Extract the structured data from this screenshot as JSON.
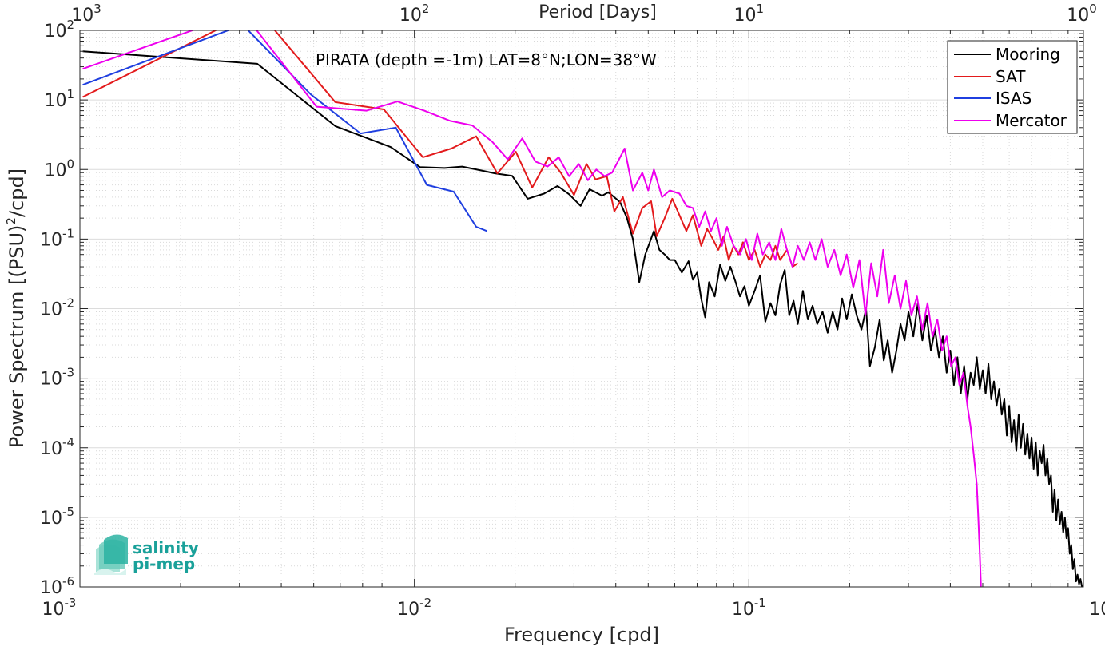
{
  "chart_data": {
    "type": "line",
    "title": "",
    "annotation": "PIRATA (depth =-1m) LAT=8°N;LON=38°W",
    "xlabel": "Frequency [cpd]",
    "ylabel_base": "Power Spectrum [(PSU)",
    "ylabel_sup": "2",
    "ylabel_tail": "/cpd]",
    "top_xlabel": "Period [Days]",
    "xscale": "log",
    "yscale": "log",
    "xlim": [
      0.001,
      1
    ],
    "ylim": [
      1e-06,
      100
    ],
    "grid": "on",
    "legend_position": "top-right",
    "x_ticks": [
      {
        "value": 0.001,
        "base": "10",
        "exp": "-3"
      },
      {
        "value": 0.01,
        "base": "10",
        "exp": "-2"
      },
      {
        "value": 0.1,
        "base": "10",
        "exp": "-1"
      },
      {
        "value": 1,
        "base": "10",
        "exp": "0"
      }
    ],
    "top_ticks": [
      {
        "value": 1000,
        "base": "10",
        "exp": "3"
      },
      {
        "value": 100,
        "base": "10",
        "exp": "2"
      },
      {
        "value": 10,
        "base": "10",
        "exp": "1"
      },
      {
        "value": 1,
        "base": "10",
        "exp": "0"
      }
    ],
    "y_ticks": [
      {
        "value": 100,
        "base": "10",
        "exp": "2"
      },
      {
        "value": 10,
        "base": "10",
        "exp": "1"
      },
      {
        "value": 1,
        "base": "10",
        "exp": "0"
      },
      {
        "value": 0.1,
        "base": "10",
        "exp": "-1"
      },
      {
        "value": 0.01,
        "base": "10",
        "exp": "-2"
      },
      {
        "value": 0.001,
        "base": "10",
        "exp": "-3"
      },
      {
        "value": 0.0001,
        "base": "10",
        "exp": "-4"
      },
      {
        "value": 1e-05,
        "base": "10",
        "exp": "-5"
      },
      {
        "value": 1e-06,
        "base": "10",
        "exp": "-6"
      }
    ],
    "series": [
      {
        "name": "Mooring",
        "color": "#000000",
        "points": [
          [
            0.00102,
            50
          ],
          [
            0.00339,
            33
          ],
          [
            0.0058,
            4.2
          ],
          [
            0.0085,
            2.1
          ],
          [
            0.0104,
            1.08
          ],
          [
            0.0123,
            1.05
          ],
          [
            0.0139,
            1.1
          ],
          [
            0.0158,
            0.97
          ],
          [
            0.0174,
            0.88
          ],
          [
            0.0196,
            0.81
          ],
          [
            0.0218,
            0.38
          ],
          [
            0.0244,
            0.45
          ],
          [
            0.0268,
            0.58
          ],
          [
            0.029,
            0.44
          ],
          [
            0.0314,
            0.3
          ],
          [
            0.0334,
            0.52
          ],
          [
            0.0364,
            0.42
          ],
          [
            0.038,
            0.47
          ],
          [
            0.0412,
            0.34
          ],
          [
            0.0432,
            0.2
          ],
          [
            0.045,
            0.1
          ],
          [
            0.047,
            0.024
          ],
          [
            0.049,
            0.06
          ],
          [
            0.052,
            0.13
          ],
          [
            0.054,
            0.07
          ],
          [
            0.056,
            0.06
          ],
          [
            0.058,
            0.05
          ],
          [
            0.06,
            0.05
          ],
          [
            0.063,
            0.033
          ],
          [
            0.066,
            0.048
          ],
          [
            0.068,
            0.026
          ],
          [
            0.07,
            0.033
          ],
          [
            0.072,
            0.014
          ],
          [
            0.074,
            0.0075
          ],
          [
            0.076,
            0.024
          ],
          [
            0.079,
            0.015
          ],
          [
            0.082,
            0.043
          ],
          [
            0.085,
            0.025
          ],
          [
            0.088,
            0.04
          ],
          [
            0.091,
            0.025
          ],
          [
            0.094,
            0.015
          ],
          [
            0.097,
            0.021
          ],
          [
            0.1,
            0.011
          ],
          [
            0.104,
            0.018
          ],
          [
            0.108,
            0.03
          ],
          [
            0.112,
            0.0065
          ],
          [
            0.116,
            0.012
          ],
          [
            0.12,
            0.008
          ],
          [
            0.124,
            0.022
          ],
          [
            0.128,
            0.036
          ],
          [
            0.132,
            0.008
          ],
          [
            0.136,
            0.013
          ],
          [
            0.14,
            0.006
          ],
          [
            0.145,
            0.018
          ],
          [
            0.15,
            0.007
          ],
          [
            0.155,
            0.011
          ],
          [
            0.16,
            0.006
          ],
          [
            0.166,
            0.009
          ],
          [
            0.172,
            0.0045
          ],
          [
            0.178,
            0.009
          ],
          [
            0.184,
            0.005
          ],
          [
            0.19,
            0.014
          ],
          [
            0.196,
            0.007
          ],
          [
            0.203,
            0.016
          ],
          [
            0.21,
            0.008
          ],
          [
            0.217,
            0.005
          ],
          [
            0.224,
            0.01
          ],
          [
            0.23,
            0.0015
          ],
          [
            0.238,
            0.0028
          ],
          [
            0.246,
            0.007
          ],
          [
            0.253,
            0.0018
          ],
          [
            0.26,
            0.0035
          ],
          [
            0.268,
            0.0012
          ],
          [
            0.276,
            0.0025
          ],
          [
            0.284,
            0.006
          ],
          [
            0.292,
            0.0035
          ],
          [
            0.3,
            0.009
          ],
          [
            0.31,
            0.004
          ],
          [
            0.32,
            0.012
          ],
          [
            0.33,
            0.0035
          ],
          [
            0.34,
            0.008
          ],
          [
            0.35,
            0.0025
          ],
          [
            0.36,
            0.005
          ],
          [
            0.37,
            0.002
          ],
          [
            0.38,
            0.004
          ],
          [
            0.39,
            0.0012
          ],
          [
            0.4,
            0.0025
          ],
          [
            0.41,
            0.0008
          ],
          [
            0.42,
            0.002
          ],
          [
            0.43,
            0.0006
          ],
          [
            0.44,
            0.0015
          ],
          [
            0.45,
            0.0005
          ],
          [
            0.46,
            0.0012
          ],
          [
            0.47,
            0.0008
          ],
          [
            0.48,
            0.002
          ],
          [
            0.49,
            0.0007
          ],
          [
            0.5,
            0.0013
          ],
          [
            0.51,
            0.0006
          ],
          [
            0.52,
            0.0016
          ],
          [
            0.53,
            0.0005
          ],
          [
            0.54,
            0.0009
          ],
          [
            0.55,
            0.0004
          ],
          [
            0.56,
            0.0007
          ],
          [
            0.57,
            0.0003
          ],
          [
            0.58,
            0.0005
          ],
          [
            0.59,
            0.00015
          ],
          [
            0.6,
            0.0004
          ],
          [
            0.61,
            0.00012
          ],
          [
            0.62,
            0.00025
          ],
          [
            0.63,
            9e-05
          ],
          [
            0.64,
            0.0003
          ],
          [
            0.65,
            0.0001
          ],
          [
            0.66,
            0.00022
          ],
          [
            0.67,
            8e-05
          ],
          [
            0.68,
            0.00016
          ],
          [
            0.69,
            7e-05
          ],
          [
            0.7,
            0.00014
          ],
          [
            0.71,
            5e-05
          ],
          [
            0.72,
            0.00012
          ],
          [
            0.73,
            4e-05
          ],
          [
            0.74,
            9e-05
          ],
          [
            0.75,
            6e-05
          ],
          [
            0.76,
            0.00011
          ],
          [
            0.77,
            4e-05
          ],
          [
            0.78,
            7e-05
          ],
          [
            0.79,
            3e-05
          ],
          [
            0.8,
            4e-05
          ],
          [
            0.81,
            1.2e-05
          ],
          [
            0.82,
            2.5e-05
          ],
          [
            0.83,
            9e-06
          ],
          [
            0.84,
            1.8e-05
          ],
          [
            0.85,
            8e-06
          ],
          [
            0.86,
            1.2e-05
          ],
          [
            0.87,
            6e-06
          ],
          [
            0.88,
            1e-05
          ],
          [
            0.89,
            5e-06
          ],
          [
            0.9,
            7e-06
          ],
          [
            0.91,
            3e-06
          ],
          [
            0.92,
            4e-06
          ],
          [
            0.93,
            1.8e-06
          ],
          [
            0.94,
            2.5e-06
          ],
          [
            0.95,
            1.2e-06
          ],
          [
            0.96,
            1.5e-06
          ],
          [
            0.97,
            1.1e-06
          ],
          [
            0.98,
            1.3e-06
          ],
          [
            0.99,
            1e-06
          ]
        ]
      },
      {
        "name": "SAT",
        "color": "#e31a1c",
        "points": [
          [
            0.00102,
            11
          ],
          [
            0.00339,
            200
          ],
          [
            0.0058,
            9.3
          ],
          [
            0.0081,
            7.3
          ],
          [
            0.0106,
            1.5
          ],
          [
            0.0129,
            2.0
          ],
          [
            0.0153,
            3.0
          ],
          [
            0.0177,
            0.88
          ],
          [
            0.0201,
            1.8
          ],
          [
            0.0225,
            0.55
          ],
          [
            0.0252,
            1.5
          ],
          [
            0.0274,
            0.9
          ],
          [
            0.03,
            0.43
          ],
          [
            0.0327,
            1.2
          ],
          [
            0.0348,
            0.72
          ],
          [
            0.0376,
            0.8
          ],
          [
            0.0396,
            0.25
          ],
          [
            0.042,
            0.4
          ],
          [
            0.045,
            0.12
          ],
          [
            0.048,
            0.28
          ],
          [
            0.051,
            0.35
          ],
          [
            0.053,
            0.11
          ],
          [
            0.056,
            0.2
          ],
          [
            0.059,
            0.38
          ],
          [
            0.062,
            0.22
          ],
          [
            0.065,
            0.13
          ],
          [
            0.068,
            0.22
          ],
          [
            0.072,
            0.08
          ],
          [
            0.075,
            0.14
          ],
          [
            0.078,
            0.1
          ],
          [
            0.081,
            0.07
          ],
          [
            0.084,
            0.11
          ],
          [
            0.087,
            0.05
          ],
          [
            0.09,
            0.08
          ],
          [
            0.093,
            0.06
          ],
          [
            0.096,
            0.09
          ],
          [
            0.1,
            0.05
          ],
          [
            0.104,
            0.07
          ],
          [
            0.108,
            0.04
          ],
          [
            0.112,
            0.06
          ],
          [
            0.116,
            0.05
          ],
          [
            0.12,
            0.08
          ],
          [
            0.124,
            0.05
          ],
          [
            0.13,
            0.07
          ],
          [
            0.135,
            0.04
          ],
          [
            0.14,
            0.045
          ]
        ]
      },
      {
        "name": "ISAS",
        "color": "#1f3fe0",
        "points": [
          [
            0.00102,
            16.5
          ],
          [
            0.00307,
            120
          ],
          [
            0.0049,
            12
          ],
          [
            0.0069,
            3.3
          ],
          [
            0.0088,
            4.0
          ],
          [
            0.0109,
            0.6
          ],
          [
            0.0131,
            0.48
          ],
          [
            0.0153,
            0.15
          ],
          [
            0.0165,
            0.13
          ]
        ]
      },
      {
        "name": "Mercator",
        "color": "#ee00ee",
        "points": [
          [
            0.00102,
            28
          ],
          [
            0.00307,
            180
          ],
          [
            0.0051,
            8
          ],
          [
            0.0072,
            7
          ],
          [
            0.0089,
            9.5
          ],
          [
            0.0107,
            7
          ],
          [
            0.0128,
            5
          ],
          [
            0.0149,
            4.3
          ],
          [
            0.0171,
            2.5
          ],
          [
            0.019,
            1.4
          ],
          [
            0.021,
            2.8
          ],
          [
            0.023,
            1.3
          ],
          [
            0.025,
            1.1
          ],
          [
            0.027,
            1.5
          ],
          [
            0.029,
            0.8
          ],
          [
            0.031,
            1.2
          ],
          [
            0.033,
            0.7
          ],
          [
            0.035,
            1.0
          ],
          [
            0.037,
            0.8
          ],
          [
            0.039,
            0.9
          ],
          [
            0.0425,
            2.0
          ],
          [
            0.045,
            0.5
          ],
          [
            0.048,
            0.9
          ],
          [
            0.05,
            0.5
          ],
          [
            0.052,
            1.0
          ],
          [
            0.055,
            0.4
          ],
          [
            0.058,
            0.5
          ],
          [
            0.062,
            0.45
          ],
          [
            0.065,
            0.3
          ],
          [
            0.068,
            0.28
          ],
          [
            0.071,
            0.15
          ],
          [
            0.074,
            0.25
          ],
          [
            0.077,
            0.13
          ],
          [
            0.08,
            0.2
          ],
          [
            0.083,
            0.08
          ],
          [
            0.086,
            0.15
          ],
          [
            0.09,
            0.08
          ],
          [
            0.094,
            0.06
          ],
          [
            0.098,
            0.1
          ],
          [
            0.102,
            0.05
          ],
          [
            0.106,
            0.12
          ],
          [
            0.11,
            0.06
          ],
          [
            0.115,
            0.09
          ],
          [
            0.12,
            0.05
          ],
          [
            0.125,
            0.14
          ],
          [
            0.13,
            0.07
          ],
          [
            0.135,
            0.04
          ],
          [
            0.14,
            0.08
          ],
          [
            0.146,
            0.05
          ],
          [
            0.152,
            0.09
          ],
          [
            0.158,
            0.05
          ],
          [
            0.165,
            0.1
          ],
          [
            0.172,
            0.04
          ],
          [
            0.18,
            0.07
          ],
          [
            0.188,
            0.03
          ],
          [
            0.196,
            0.06
          ],
          [
            0.205,
            0.02
          ],
          [
            0.214,
            0.05
          ],
          [
            0.223,
            0.008
          ],
          [
            0.232,
            0.045
          ],
          [
            0.242,
            0.015
          ],
          [
            0.252,
            0.07
          ],
          [
            0.262,
            0.012
          ],
          [
            0.273,
            0.03
          ],
          [
            0.284,
            0.01
          ],
          [
            0.295,
            0.025
          ],
          [
            0.306,
            0.008
          ],
          [
            0.318,
            0.015
          ],
          [
            0.33,
            0.005
          ],
          [
            0.342,
            0.012
          ],
          [
            0.354,
            0.004
          ],
          [
            0.366,
            0.007
          ],
          [
            0.378,
            0.0025
          ],
          [
            0.39,
            0.004
          ],
          [
            0.402,
            0.0015
          ],
          [
            0.414,
            0.002
          ],
          [
            0.426,
            0.0008
          ],
          [
            0.438,
            0.0012
          ],
          [
            0.45,
            0.0004
          ],
          [
            0.46,
            0.0002
          ],
          [
            0.47,
            8e-05
          ],
          [
            0.48,
            3e-05
          ],
          [
            0.485,
            1e-05
          ],
          [
            0.49,
            3e-06
          ],
          [
            0.494,
            1e-06
          ]
        ]
      }
    ],
    "logo": {
      "line1": "salinity",
      "line2": "pi-mep"
    }
  }
}
